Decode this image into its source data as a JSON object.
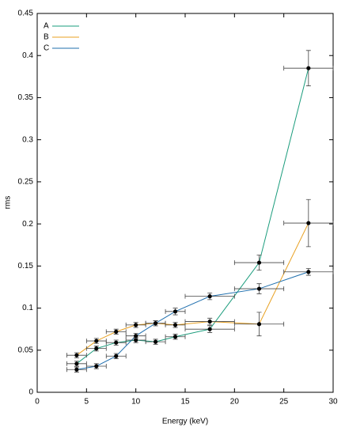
{
  "chart_data": {
    "type": "line",
    "x_label": "Energy (keV)",
    "y_label": "rms",
    "x": [
      4,
      6,
      8,
      10,
      12,
      14,
      17.5,
      22.5,
      27.5
    ],
    "xerr": [
      1,
      1,
      1,
      1,
      1,
      1,
      2.5,
      2.5,
      2.5
    ],
    "series": [
      {
        "name": "A",
        "color": "#1a9c7c",
        "values": [
          0.034,
          0.052,
          0.059,
          0.062,
          0.06,
          0.066,
          0.075,
          0.154,
          0.385
        ],
        "yerr": [
          0.003,
          0.003,
          0.003,
          0.003,
          0.003,
          0.003,
          0.004,
          0.009,
          0.021
        ]
      },
      {
        "name": "B",
        "color": "#e8a020",
        "values": [
          0.044,
          0.061,
          0.072,
          0.08,
          0.082,
          0.08,
          0.084,
          0.081,
          0.201
        ],
        "yerr": [
          0.003,
          0.003,
          0.003,
          0.003,
          0.003,
          0.003,
          0.004,
          0.014,
          0.028
        ]
      },
      {
        "name": "C",
        "color": "#1f6fae",
        "values": [
          0.027,
          0.031,
          0.043,
          0.067,
          0.082,
          0.096,
          0.114,
          0.123,
          0.143
        ],
        "yerr": [
          0.003,
          0.003,
          0.003,
          0.003,
          0.003,
          0.004,
          0.004,
          0.006,
          0.004
        ]
      }
    ],
    "xlim": [
      0,
      30
    ],
    "xticks": [
      0,
      5,
      10,
      15,
      20,
      25,
      30
    ],
    "ylim": [
      0,
      0.45
    ],
    "yticks": [
      0,
      0.05,
      0.1,
      0.15,
      0.2,
      0.25,
      0.3,
      0.35,
      0.4,
      0.45
    ],
    "legend": "upper-left"
  }
}
